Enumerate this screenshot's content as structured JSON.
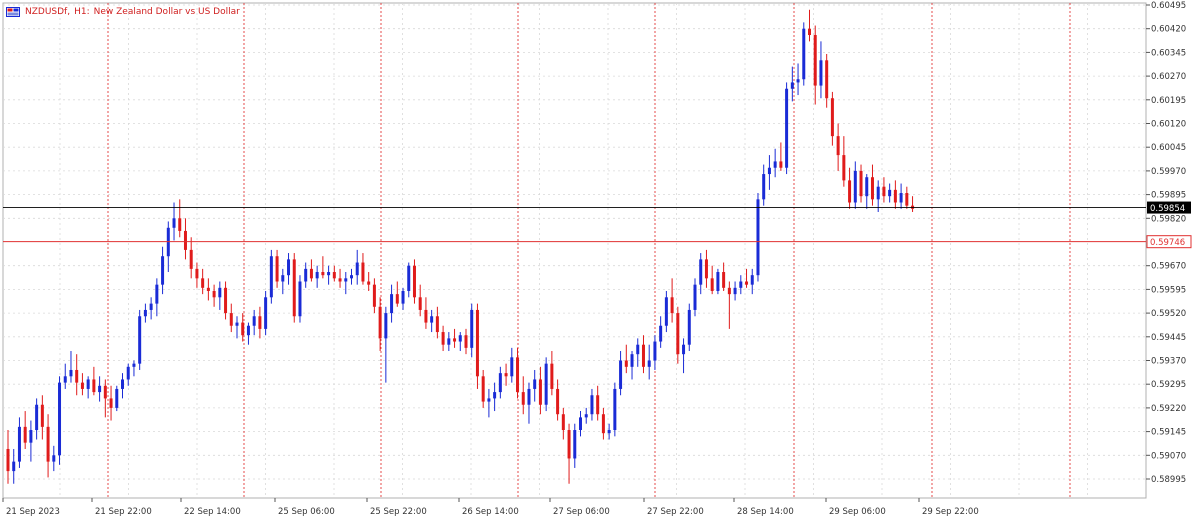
{
  "title": {
    "symbol": "NZDUSDf,",
    "timeframe": "H1:",
    "description": "New Zealand Dollar vs US Dollar"
  },
  "icons": {
    "chart_type": "chart-window-icon"
  },
  "colors": {
    "bull": "#1a2bd6",
    "bear": "#e01b1b",
    "grid": "#d9d9d9",
    "session": "#e02020",
    "axis": "#b0b0b0",
    "last_price_bg": "#000000",
    "ask_line": "#e03030"
  },
  "price_axis": {
    "labels": [
      "0.60495",
      "0.60420",
      "0.60345",
      "0.60270",
      "0.60195",
      "0.60120",
      "0.60045",
      "0.59970",
      "0.59895",
      "0.59820",
      "0.59670",
      "0.59595",
      "0.59520",
      "0.59445",
      "0.59370",
      "0.59295",
      "0.59220",
      "0.59145",
      "0.59070",
      "0.58995"
    ],
    "last_price": "0.59854",
    "ask_price": "0.59746"
  },
  "time_axis": {
    "labels": [
      "21 Sep 2023",
      "21 Sep 22:00",
      "22 Sep 14:00",
      "25 Sep 06:00",
      "25 Sep 22:00",
      "26 Sep 14:00",
      "27 Sep 06:00",
      "27 Sep 22:00",
      "28 Sep 14:00",
      "29 Sep 06:00",
      "29 Sep 22:00"
    ]
  },
  "chart_data": {
    "type": "candlestick",
    "ylim": [
      0.5896,
      0.605
    ],
    "last_price": 0.59854,
    "ask_price": 0.59746,
    "candles": [
      [
        0.5909,
        0.5915,
        0.5898,
        0.5902
      ],
      [
        0.5902,
        0.5909,
        0.5898,
        0.5905
      ],
      [
        0.5905,
        0.5919,
        0.5903,
        0.5916
      ],
      [
        0.5916,
        0.5921,
        0.5909,
        0.5911
      ],
      [
        0.5911,
        0.5918,
        0.5905,
        0.5915
      ],
      [
        0.5915,
        0.5925,
        0.5912,
        0.5923
      ],
      [
        0.5923,
        0.5926,
        0.5912,
        0.5916
      ],
      [
        0.5916,
        0.592,
        0.59,
        0.5905
      ],
      [
        0.5905,
        0.591,
        0.5902,
        0.5907
      ],
      [
        0.5907,
        0.5932,
        0.5904,
        0.593
      ],
      [
        0.593,
        0.5936,
        0.5928,
        0.5932
      ],
      [
        0.5932,
        0.594,
        0.593,
        0.5934
      ],
      [
        0.5934,
        0.5939,
        0.5926,
        0.593
      ],
      [
        0.593,
        0.5933,
        0.5926,
        0.5928
      ],
      [
        0.5928,
        0.5932,
        0.5925,
        0.5931
      ],
      [
        0.5931,
        0.5935,
        0.5926,
        0.5927
      ],
      [
        0.5927,
        0.5932,
        0.5924,
        0.5929
      ],
      [
        0.5929,
        0.5931,
        0.5919,
        0.5925
      ],
      [
        0.5925,
        0.5929,
        0.5918,
        0.5922
      ],
      [
        0.5922,
        0.5929,
        0.5921,
        0.5928
      ],
      [
        0.5928,
        0.5933,
        0.5925,
        0.5931
      ],
      [
        0.5931,
        0.5936,
        0.5929,
        0.5935
      ],
      [
        0.5935,
        0.5937,
        0.5932,
        0.5936
      ],
      [
        0.5936,
        0.5953,
        0.5934,
        0.5951
      ],
      [
        0.5951,
        0.5955,
        0.5949,
        0.5953
      ],
      [
        0.5953,
        0.5957,
        0.595,
        0.5955
      ],
      [
        0.5955,
        0.5963,
        0.5951,
        0.5961
      ],
      [
        0.5961,
        0.5973,
        0.5958,
        0.597
      ],
      [
        0.597,
        0.5981,
        0.5965,
        0.5979
      ],
      [
        0.5979,
        0.5987,
        0.5975,
        0.5982
      ],
      [
        0.5982,
        0.5988,
        0.5976,
        0.5978
      ],
      [
        0.5978,
        0.5982,
        0.5969,
        0.5972
      ],
      [
        0.5972,
        0.5976,
        0.5963,
        0.5966
      ],
      [
        0.5966,
        0.5968,
        0.596,
        0.5963
      ],
      [
        0.5963,
        0.5966,
        0.5958,
        0.596
      ],
      [
        0.596,
        0.5963,
        0.5956,
        0.5959
      ],
      [
        0.5959,
        0.5961,
        0.5954,
        0.5957
      ],
      [
        0.5957,
        0.5962,
        0.5953,
        0.596
      ],
      [
        0.596,
        0.5962,
        0.595,
        0.5952
      ],
      [
        0.5952,
        0.5955,
        0.5946,
        0.5948
      ],
      [
        0.5948,
        0.5951,
        0.5944,
        0.5949
      ],
      [
        0.5949,
        0.5952,
        0.5943,
        0.5945
      ],
      [
        0.5945,
        0.5949,
        0.5942,
        0.5948
      ],
      [
        0.5948,
        0.5953,
        0.5945,
        0.5951
      ],
      [
        0.5951,
        0.5954,
        0.5944,
        0.5947
      ],
      [
        0.5947,
        0.5959,
        0.5945,
        0.5957
      ],
      [
        0.5957,
        0.5972,
        0.5955,
        0.597
      ],
      [
        0.597,
        0.5972,
        0.596,
        0.5962
      ],
      [
        0.5962,
        0.5966,
        0.5958,
        0.5964
      ],
      [
        0.5964,
        0.5971,
        0.5961,
        0.5969
      ],
      [
        0.5969,
        0.5971,
        0.5949,
        0.5951
      ],
      [
        0.5951,
        0.5964,
        0.5949,
        0.5962
      ],
      [
        0.5962,
        0.5968,
        0.596,
        0.5966
      ],
      [
        0.5966,
        0.5969,
        0.5962,
        0.5963
      ],
      [
        0.5963,
        0.5967,
        0.596,
        0.5965
      ],
      [
        0.5965,
        0.597,
        0.5963,
        0.5964
      ],
      [
        0.5964,
        0.5967,
        0.5961,
        0.5965
      ],
      [
        0.5965,
        0.5967,
        0.5962,
        0.5963
      ],
      [
        0.5963,
        0.5966,
        0.596,
        0.5962
      ],
      [
        0.5962,
        0.5965,
        0.5958,
        0.5963
      ],
      [
        0.5963,
        0.5966,
        0.5961,
        0.5964
      ],
      [
        0.5964,
        0.5972,
        0.5961,
        0.5968
      ],
      [
        0.5968,
        0.5971,
        0.5961,
        0.5962
      ],
      [
        0.5962,
        0.5965,
        0.5959,
        0.5961
      ],
      [
        0.5961,
        0.5963,
        0.5952,
        0.5954
      ],
      [
        0.5954,
        0.5957,
        0.594,
        0.5944
      ],
      [
        0.5944,
        0.5954,
        0.593,
        0.5952
      ],
      [
        0.5952,
        0.5961,
        0.5949,
        0.5958
      ],
      [
        0.5958,
        0.5962,
        0.5954,
        0.5955
      ],
      [
        0.5955,
        0.596,
        0.5953,
        0.5959
      ],
      [
        0.5959,
        0.5968,
        0.5957,
        0.5967
      ],
      [
        0.5967,
        0.5969,
        0.5955,
        0.5957
      ],
      [
        0.5957,
        0.5961,
        0.5951,
        0.5953
      ],
      [
        0.5953,
        0.5957,
        0.5947,
        0.5949
      ],
      [
        0.5949,
        0.5953,
        0.5946,
        0.5951
      ],
      [
        0.5951,
        0.5954,
        0.5944,
        0.5946
      ],
      [
        0.5946,
        0.5948,
        0.594,
        0.5942
      ],
      [
        0.5942,
        0.5946,
        0.594,
        0.5944
      ],
      [
        0.5944,
        0.5947,
        0.5941,
        0.5943
      ],
      [
        0.5943,
        0.5946,
        0.594,
        0.5945
      ],
      [
        0.5945,
        0.5947,
        0.5939,
        0.5941
      ],
      [
        0.5941,
        0.5955,
        0.5938,
        0.5953
      ],
      [
        0.5953,
        0.5955,
        0.5928,
        0.5932
      ],
      [
        0.5932,
        0.5934,
        0.5922,
        0.5924
      ],
      [
        0.5924,
        0.5928,
        0.5919,
        0.5925
      ],
      [
        0.5925,
        0.593,
        0.5921,
        0.5927
      ],
      [
        0.5927,
        0.5935,
        0.5925,
        0.5933
      ],
      [
        0.5933,
        0.5936,
        0.5929,
        0.5932
      ],
      [
        0.5932,
        0.5941,
        0.593,
        0.5938
      ],
      [
        0.5938,
        0.5941,
        0.5925,
        0.5927
      ],
      [
        0.5927,
        0.5932,
        0.592,
        0.5923
      ],
      [
        0.5923,
        0.593,
        0.5917,
        0.5928
      ],
      [
        0.5928,
        0.5934,
        0.5924,
        0.5931
      ],
      [
        0.5931,
        0.5935,
        0.592,
        0.5923
      ],
      [
        0.5923,
        0.5938,
        0.5921,
        0.5936
      ],
      [
        0.5936,
        0.594,
        0.5926,
        0.5928
      ],
      [
        0.5928,
        0.5931,
        0.5918,
        0.592
      ],
      [
        0.592,
        0.5922,
        0.5912,
        0.5915
      ],
      [
        0.5915,
        0.5917,
        0.5898,
        0.5906
      ],
      [
        0.5906,
        0.5917,
        0.5903,
        0.5915
      ],
      [
        0.5915,
        0.5921,
        0.5913,
        0.5919
      ],
      [
        0.5919,
        0.5922,
        0.5917,
        0.592
      ],
      [
        0.592,
        0.5928,
        0.5918,
        0.5926
      ],
      [
        0.5926,
        0.5929,
        0.5918,
        0.592
      ],
      [
        0.592,
        0.5922,
        0.5912,
        0.5914
      ],
      [
        0.5914,
        0.5917,
        0.5912,
        0.5915
      ],
      [
        0.5915,
        0.593,
        0.5913,
        0.5928
      ],
      [
        0.5928,
        0.594,
        0.5926,
        0.5937
      ],
      [
        0.5937,
        0.5942,
        0.5933,
        0.5935
      ],
      [
        0.5935,
        0.594,
        0.5931,
        0.5939
      ],
      [
        0.5939,
        0.5944,
        0.5935,
        0.5942
      ],
      [
        0.5942,
        0.5945,
        0.5933,
        0.5935
      ],
      [
        0.5935,
        0.5942,
        0.5931,
        0.5937
      ],
      [
        0.5937,
        0.5945,
        0.5934,
        0.5943
      ],
      [
        0.5943,
        0.5951,
        0.5941,
        0.5948
      ],
      [
        0.5948,
        0.5959,
        0.5946,
        0.5957
      ],
      [
        0.5957,
        0.5963,
        0.5949,
        0.5952
      ],
      [
        0.5952,
        0.5954,
        0.5936,
        0.5939
      ],
      [
        0.5939,
        0.5944,
        0.5933,
        0.5942
      ],
      [
        0.5942,
        0.5955,
        0.594,
        0.5953
      ],
      [
        0.5953,
        0.5963,
        0.5951,
        0.5961
      ],
      [
        0.5961,
        0.5971,
        0.5958,
        0.5969
      ],
      [
        0.5969,
        0.5972,
        0.596,
        0.5963
      ],
      [
        0.5963,
        0.5967,
        0.5958,
        0.5959
      ],
      [
        0.5959,
        0.5966,
        0.5958,
        0.5965
      ],
      [
        0.5965,
        0.5968,
        0.5959,
        0.596
      ],
      [
        0.596,
        0.5962,
        0.5947,
        0.5958
      ],
      [
        0.5958,
        0.5962,
        0.5956,
        0.596
      ],
      [
        0.596,
        0.5964,
        0.5958,
        0.5962
      ],
      [
        0.5962,
        0.5966,
        0.596,
        0.5961
      ],
      [
        0.5961,
        0.5966,
        0.5958,
        0.5964
      ],
      [
        0.5964,
        0.599,
        0.5962,
        0.5988
      ],
      [
        0.5988,
        0.5999,
        0.5986,
        0.5996
      ],
      [
        0.5996,
        0.6002,
        0.5991,
        0.5998
      ],
      [
        0.5998,
        0.6004,
        0.5995,
        0.6
      ],
      [
        0.6,
        0.6006,
        0.5997,
        0.5998
      ],
      [
        0.5998,
        0.6025,
        0.5996,
        0.6023
      ],
      [
        0.6023,
        0.603,
        0.6019,
        0.6025
      ],
      [
        0.6025,
        0.6031,
        0.6021,
        0.6026
      ],
      [
        0.6026,
        0.6044,
        0.6024,
        0.6042
      ],
      [
        0.6042,
        0.6048,
        0.6038,
        0.604
      ],
      [
        0.604,
        0.6043,
        0.6018,
        0.6024
      ],
      [
        0.6024,
        0.6038,
        0.602,
        0.6032
      ],
      [
        0.6032,
        0.6034,
        0.6017,
        0.602
      ],
      [
        0.602,
        0.6022,
        0.6005,
        0.6008
      ],
      [
        0.6008,
        0.6012,
        0.5997,
        0.6002
      ],
      [
        0.6002,
        0.6008,
        0.5992,
        0.5994
      ],
      [
        0.5994,
        0.5998,
        0.5985,
        0.5987
      ],
      [
        0.5987,
        0.6,
        0.5985,
        0.5997
      ],
      [
        0.5997,
        0.5999,
        0.5987,
        0.5989
      ],
      [
        0.5989,
        0.5996,
        0.5985,
        0.5995
      ],
      [
        0.5995,
        0.5999,
        0.5986,
        0.5988
      ],
      [
        0.5988,
        0.5994,
        0.5984,
        0.5992
      ],
      [
        0.5992,
        0.5995,
        0.5987,
        0.5989
      ],
      [
        0.5989,
        0.5993,
        0.5987,
        0.5991
      ],
      [
        0.5991,
        0.5994,
        0.5985,
        0.5987
      ],
      [
        0.5987,
        0.5993,
        0.5985,
        0.599
      ],
      [
        0.599,
        0.5992,
        0.5985,
        0.5986
      ],
      [
        0.5986,
        0.5989,
        0.5984,
        0.5985
      ]
    ]
  }
}
